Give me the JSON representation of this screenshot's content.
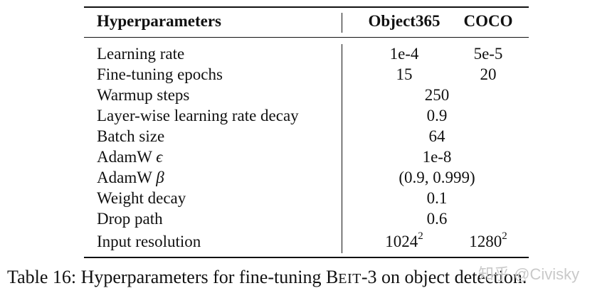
{
  "table": {
    "headers": [
      "Hyperparameters",
      "Object365",
      "COCO"
    ],
    "rows": [
      {
        "label": "Learning rate",
        "obj365": "1e-4",
        "coco": "5e-5"
      },
      {
        "label": "Fine-tuning epochs",
        "obj365": "15",
        "coco": "20"
      },
      {
        "label": "Warmup steps",
        "shared": "250"
      },
      {
        "label": "Layer-wise learning rate decay",
        "shared": "0.9"
      },
      {
        "label": "Batch size",
        "shared": "64"
      },
      {
        "label_prefix": "AdamW",
        "symbol": "ϵ",
        "shared": "1e-8"
      },
      {
        "label_prefix": "AdamW",
        "symbol": "β",
        "shared": "(0.9, 0.999)"
      },
      {
        "label": "Weight decay",
        "shared": "0.1"
      },
      {
        "label": "Drop path",
        "shared": "0.6"
      },
      {
        "label": "Input resolution",
        "obj365_base": "1024",
        "obj365_exp": "2",
        "coco_base": "1280",
        "coco_exp": "2"
      }
    ]
  },
  "caption": {
    "prefix": "Table 16:  Hyperparameters for fine-tuning B",
    "small": "EIT",
    "suffix": "-3 on object detection."
  },
  "watermark": "知乎 @Civisky"
}
